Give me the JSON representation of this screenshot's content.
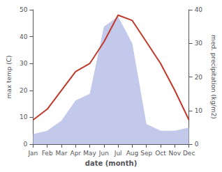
{
  "chart_data": {
    "type": "line",
    "xlabel": "date (month)",
    "ylabel": "max temp (C)",
    "y2label": "med. precipitation (kg/m2)",
    "categories": [
      "Jan",
      "Feb",
      "Mar",
      "Apr",
      "May",
      "Jun",
      "Jul",
      "Aug",
      "Sep",
      "Oct",
      "Nov",
      "Dec"
    ],
    "series": [
      {
        "type": "area",
        "axis": "y2",
        "color": "#b8bfe8",
        "values": [
          3,
          4,
          7,
          13,
          15,
          35,
          38,
          30,
          6,
          4,
          4,
          5
        ]
      },
      {
        "type": "line",
        "color": "#c0392b",
        "values": [
          9,
          13,
          20,
          27,
          30,
          38,
          48,
          46,
          38,
          30,
          20,
          9
        ]
      }
    ],
    "ylim": [
      0,
      50
    ],
    "yticks": [
      0,
      10,
      20,
      30,
      40,
      50
    ],
    "y2lim": [
      0,
      40
    ],
    "y2ticks": [
      0,
      10,
      20,
      30,
      40
    ],
    "grid": false
  }
}
